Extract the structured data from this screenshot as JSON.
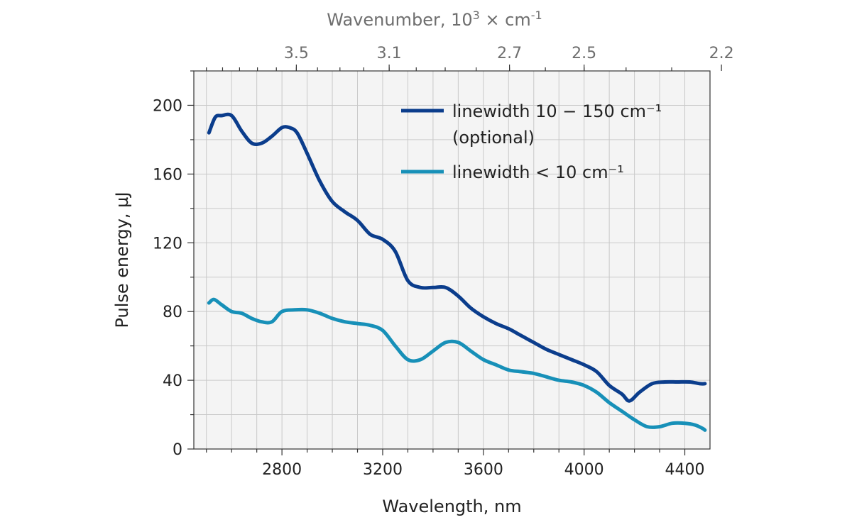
{
  "chart_data": {
    "type": "line",
    "xlabel": "Wavelength, nm",
    "ylabel": "Pulse energy, µJ",
    "top_axis": {
      "label_prefix": "Wavenumber, 10",
      "label_sup": "3",
      "label_suffix": " × cm",
      "label_sup2": "-1",
      "ticks": [
        "3.5",
        "3.1",
        "2.7",
        "2.5",
        "2.2"
      ]
    },
    "xlim": [
      2450,
      4500
    ],
    "ylim": [
      0,
      220
    ],
    "xticks": [
      2800,
      3200,
      3600,
      4000,
      4400
    ],
    "yticks": [
      0,
      40,
      80,
      120,
      160,
      200
    ],
    "grid": true,
    "legend_position": "top-right",
    "series": [
      {
        "name": "linewidth 10 − 150 cm⁻¹",
        "name_line2": "(optional)",
        "color": "#0b3d8c",
        "x": [
          2510,
          2535,
          2560,
          2600,
          2640,
          2680,
          2720,
          2760,
          2800,
          2830,
          2860,
          2900,
          2950,
          3000,
          3050,
          3100,
          3150,
          3200,
          3250,
          3300,
          3350,
          3400,
          3450,
          3500,
          3550,
          3600,
          3650,
          3700,
          3750,
          3800,
          3850,
          3900,
          3950,
          4000,
          4050,
          4100,
          4150,
          4180,
          4220,
          4270,
          4320,
          4370,
          4420,
          4460,
          4480
        ],
        "y": [
          184,
          193,
          194,
          194,
          185,
          178,
          178,
          182,
          187,
          187,
          184,
          172,
          156,
          144,
          138,
          133,
          125,
          122,
          115,
          98,
          94,
          94,
          94,
          89,
          82,
          77,
          73,
          70,
          66,
          62,
          58,
          55,
          52,
          49,
          45,
          37,
          32,
          28,
          33,
          38,
          39,
          39,
          39,
          38,
          38
        ]
      },
      {
        "name": "linewidth < 10 cm⁻¹",
        "color": "#1790b8",
        "x": [
          2510,
          2530,
          2560,
          2600,
          2640,
          2680,
          2720,
          2760,
          2800,
          2850,
          2900,
          2950,
          3000,
          3050,
          3100,
          3150,
          3200,
          3250,
          3300,
          3350,
          3400,
          3450,
          3500,
          3550,
          3600,
          3650,
          3700,
          3750,
          3800,
          3850,
          3900,
          3950,
          4000,
          4050,
          4100,
          4150,
          4200,
          4250,
          4300,
          4350,
          4400,
          4440,
          4470,
          4480
        ],
        "y": [
          85,
          87,
          84,
          80,
          79,
          76,
          74,
          74,
          80,
          81,
          81,
          79,
          76,
          74,
          73,
          72,
          69,
          60,
          52,
          52,
          57,
          62,
          62,
          57,
          52,
          49,
          46,
          45,
          44,
          42,
          40,
          39,
          37,
          33,
          27,
          22,
          17,
          13,
          13,
          15,
          15,
          14,
          12,
          11
        ]
      }
    ]
  }
}
